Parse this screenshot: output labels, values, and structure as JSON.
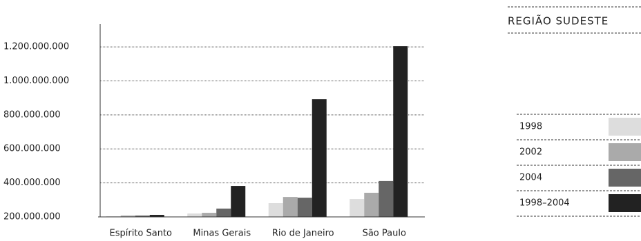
{
  "chart_data": {
    "type": "bar",
    "title": "REGIÃO SUDESTE",
    "categories": [
      "Espírito Santo",
      "Minas Gerais",
      "Rio de Janeiro",
      "São Paulo"
    ],
    "series": [
      {
        "name": "1998",
        "color": "#dddddd",
        "values": [
          204000000,
          220000000,
          281000000,
          305000000
        ]
      },
      {
        "name": "2002",
        "color": "#aaaaaa",
        "values": [
          208000000,
          224000000,
          317000000,
          342000000
        ]
      },
      {
        "name": "2004",
        "color": "#666666",
        "values": [
          208000000,
          249000000,
          313000000,
          411000000
        ]
      },
      {
        "name": "1998–2004",
        "color": "#222222",
        "values": [
          212000000,
          382000000,
          892000000,
          1204000000
        ]
      }
    ],
    "ylim": [
      200000000,
      1334000000
    ],
    "yticks": [
      {
        "value": 200000000,
        "label": "200.000.000"
      },
      {
        "value": 400000000,
        "label": "400.000.000"
      },
      {
        "value": 600000000,
        "label": "600.000.000"
      },
      {
        "value": 800000000,
        "label": "800.000.000"
      },
      {
        "value": 1000000000,
        "label": "1.000.000.000"
      },
      {
        "value": 1200000000,
        "label": "1.200.000.000"
      }
    ],
    "grid": true,
    "legend": "right"
  }
}
